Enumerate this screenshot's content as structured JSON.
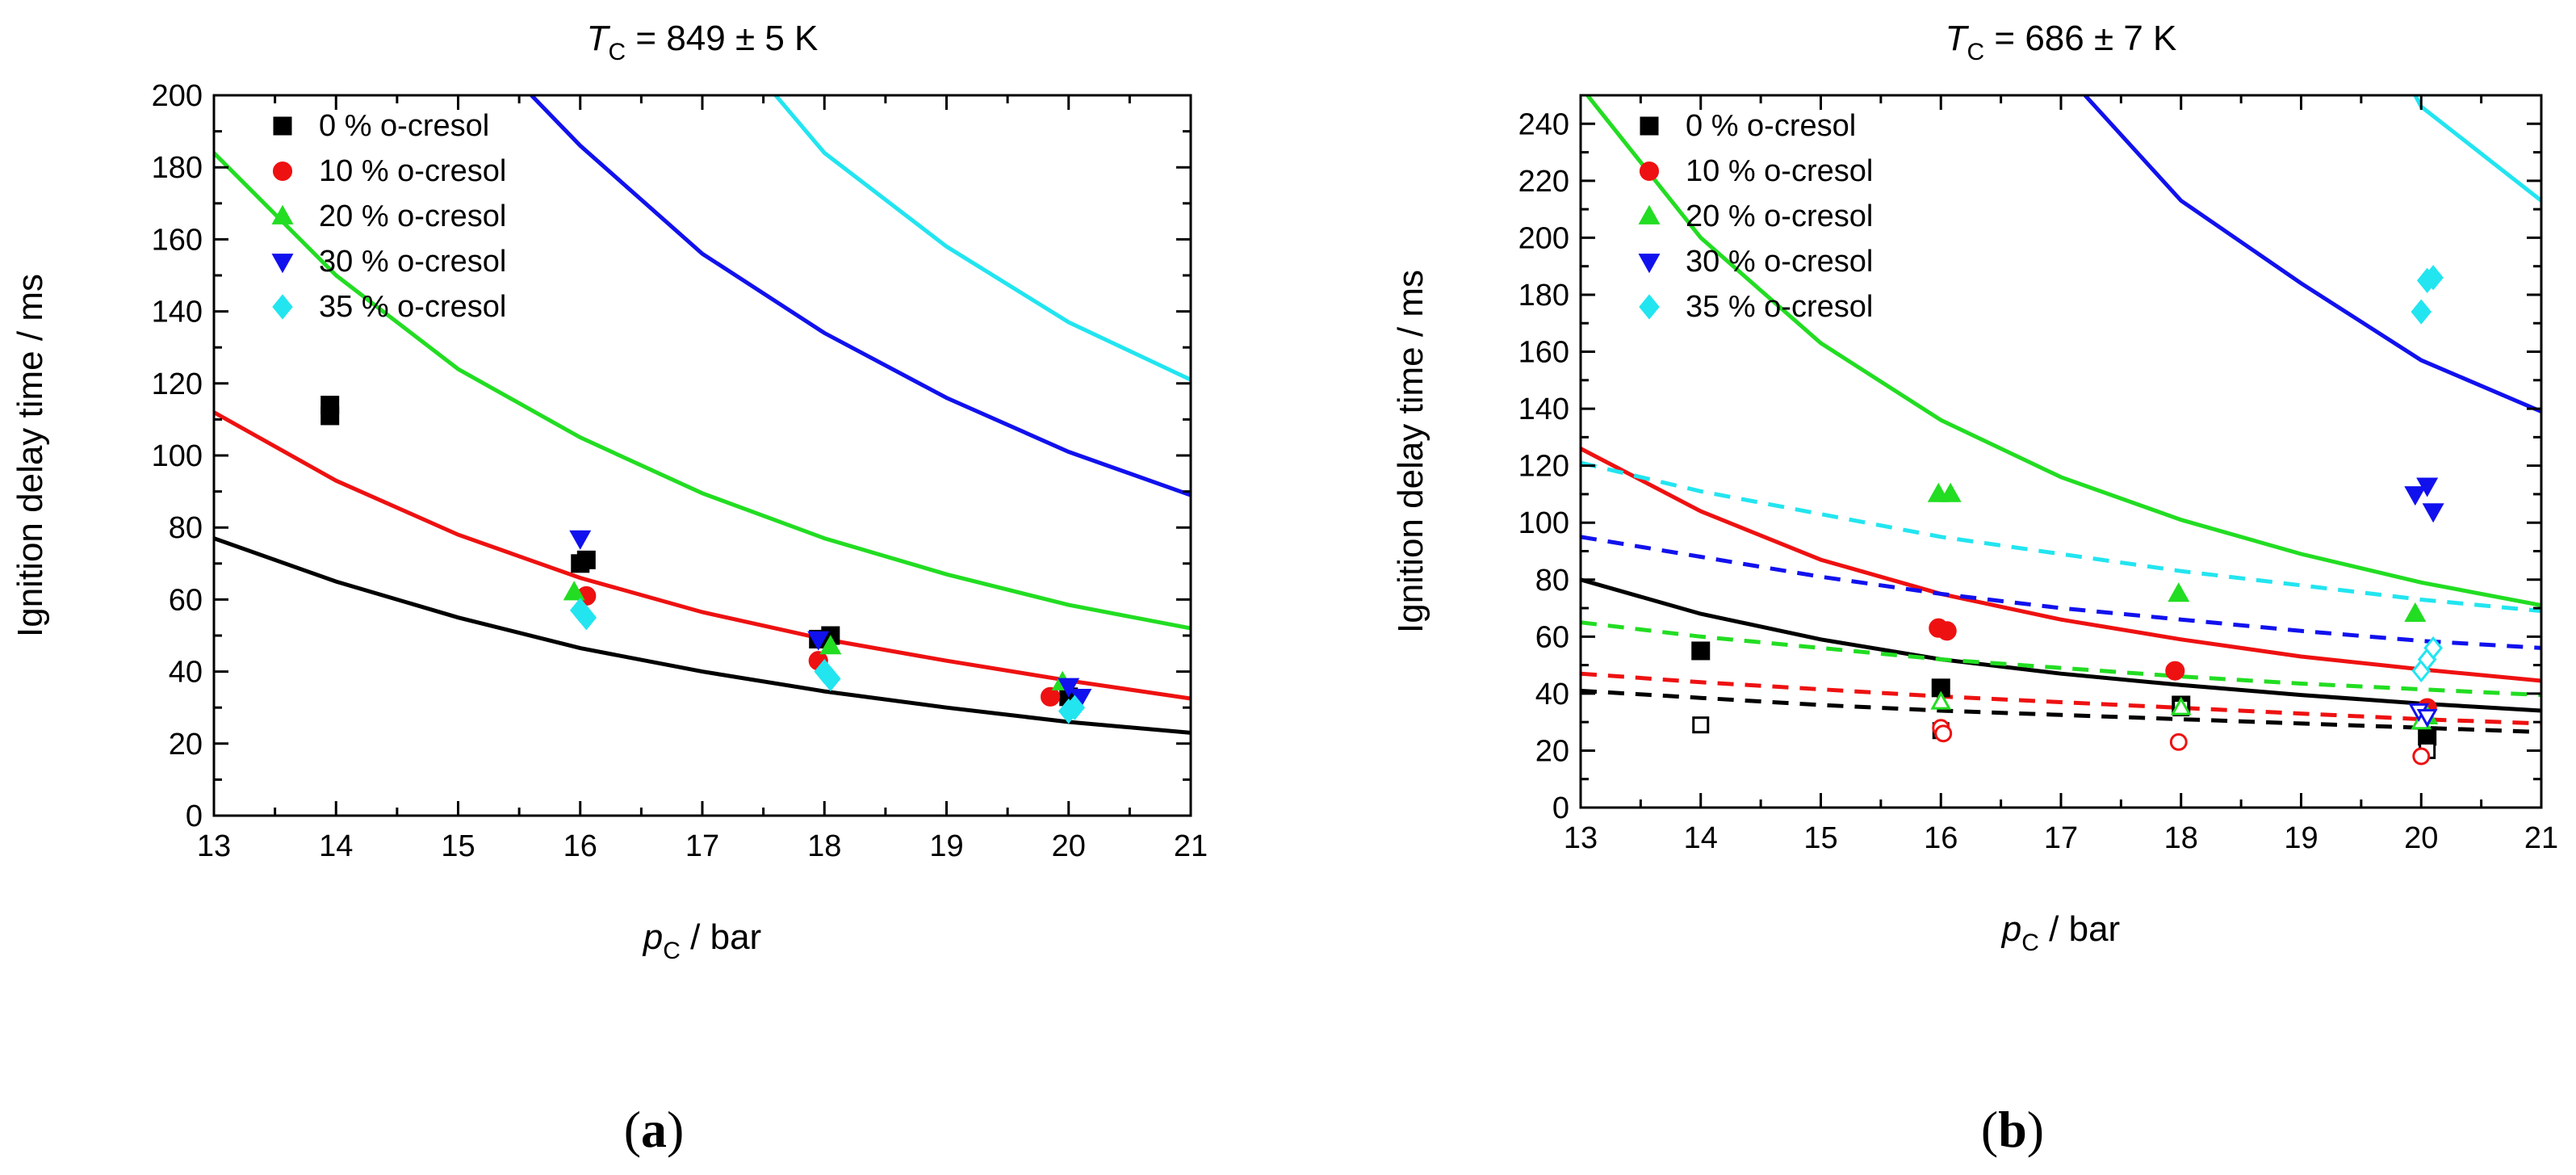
{
  "colors": {
    "black": "#000000",
    "red": "#ee1111",
    "green": "#22dd22",
    "blue": "#1111ee",
    "cyan": "#22e5f0"
  },
  "chart_data": [
    {
      "type": "scatter",
      "panel": "a",
      "panel_label_open": "(",
      "panel_label_letter": "a",
      "panel_label_close": ")",
      "title_var": "T",
      "title_sub": "C",
      "title_rest": " = 849 ± 5 K",
      "xlabel_var": "p",
      "xlabel_sub": "C",
      "xlabel_rest": " / bar",
      "ylabel": "Ignition delay time / ms",
      "xlim": [
        13,
        21
      ],
      "ylim": [
        0,
        200
      ],
      "xticks": [
        13,
        14,
        15,
        16,
        17,
        18,
        19,
        20,
        21
      ],
      "yticks": [
        0,
        20,
        40,
        60,
        80,
        100,
        120,
        140,
        160,
        180,
        200
      ],
      "legend_position": "top-left",
      "legend": [
        {
          "label": "0 % o-cresol",
          "marker": "square",
          "color": "#000000"
        },
        {
          "label": "10 % o-cresol",
          "marker": "circle",
          "color": "#ee1111"
        },
        {
          "label": "20 % o-cresol",
          "marker": "triangle-up",
          "color": "#22dd22"
        },
        {
          "label": "30 % o-cresol",
          "marker": "triangle-down",
          "color": "#1111ee"
        },
        {
          "label": "35 % o-cresol",
          "marker": "diamond",
          "color": "#22e5f0"
        }
      ],
      "points": [
        {
          "series": "0 % o-cresol",
          "marker": "square",
          "color": "#000000",
          "filled": true,
          "x": [
            13.95,
            13.95,
            16.0,
            16.05,
            17.95,
            18.05,
            20.0
          ],
          "y": [
            111,
            114,
            70,
            71,
            49,
            50,
            33
          ]
        },
        {
          "series": "10 % o-cresol",
          "marker": "circle",
          "color": "#ee1111",
          "filled": true,
          "x": [
            16.05,
            17.95,
            19.85
          ],
          "y": [
            61,
            43,
            33
          ]
        },
        {
          "series": "20 % o-cresol",
          "marker": "triangle-up",
          "color": "#22dd22",
          "filled": true,
          "x": [
            15.95,
            18.05,
            19.95
          ],
          "y": [
            62,
            47,
            37
          ]
        },
        {
          "series": "30 % o-cresol",
          "marker": "triangle-down",
          "color": "#1111ee",
          "filled": true,
          "x": [
            16.0,
            17.95,
            20.0,
            20.1
          ],
          "y": [
            77,
            49,
            36,
            33
          ]
        },
        {
          "series": "35 % o-cresol",
          "marker": "diamond",
          "color": "#22e5f0",
          "filled": true,
          "x": [
            16.0,
            16.05,
            18.0,
            18.05,
            20.0,
            20.05
          ],
          "y": [
            57,
            55,
            40,
            38,
            29,
            30
          ]
        }
      ],
      "lines": [
        {
          "series": "0 % o-cresol model",
          "color": "#000000",
          "dashed": false,
          "x": [
            13,
            14,
            15,
            16,
            17,
            18,
            19,
            20,
            21
          ],
          "y": [
            77,
            65,
            55,
            46.5,
            40,
            34.5,
            30,
            26,
            23
          ]
        },
        {
          "series": "10 % o-cresol model",
          "color": "#ee1111",
          "dashed": false,
          "x": [
            13,
            14,
            15,
            16,
            17,
            18,
            19,
            20,
            21
          ],
          "y": [
            112,
            93,
            78,
            66,
            56.5,
            49,
            43,
            37.5,
            32.5
          ]
        },
        {
          "series": "20 % o-cresol model",
          "color": "#22dd22",
          "dashed": false,
          "x": [
            13,
            14,
            15,
            16,
            17,
            18,
            19,
            20,
            21
          ],
          "y": [
            184,
            150,
            124,
            105,
            89.5,
            77,
            67,
            58.5,
            52
          ]
        },
        {
          "series": "30 % o-cresol model",
          "color": "#1111ee",
          "dashed": false,
          "x": [
            15.6,
            16,
            17,
            18,
            19,
            20,
            21
          ],
          "y": [
            200,
            186,
            156,
            134,
            116,
            101,
            89
          ]
        },
        {
          "series": "35 % o-cresol model",
          "color": "#22e5f0",
          "dashed": false,
          "x": [
            17.6,
            18,
            19,
            20,
            21
          ],
          "y": [
            200,
            184,
            158,
            137,
            121
          ]
        }
      ]
    },
    {
      "type": "scatter",
      "panel": "b",
      "panel_label_open": "(",
      "panel_label_letter": "b",
      "panel_label_close": ")",
      "title_var": "T",
      "title_sub": "C",
      "title_rest": " = 686 ± 7 K",
      "xlabel_var": "p",
      "xlabel_sub": "C",
      "xlabel_rest": " / bar",
      "ylabel": "Ignition delay time / ms",
      "xlim": [
        13,
        21
      ],
      "ylim": [
        0,
        250
      ],
      "xticks": [
        13,
        14,
        15,
        16,
        17,
        18,
        19,
        20,
        21
      ],
      "yticks": [
        0,
        20,
        40,
        60,
        80,
        100,
        120,
        140,
        160,
        180,
        200,
        220,
        240
      ],
      "legend_position": "top-left",
      "legend": [
        {
          "label": "0 % o-cresol",
          "marker": "square",
          "color": "#000000"
        },
        {
          "label": "10 % o-cresol",
          "marker": "circle",
          "color": "#ee1111"
        },
        {
          "label": "20 % o-cresol",
          "marker": "triangle-up",
          "color": "#22dd22"
        },
        {
          "label": "30 % o-cresol",
          "marker": "triangle-down",
          "color": "#1111ee"
        },
        {
          "label": "35 % o-cresol",
          "marker": "diamond",
          "color": "#22e5f0"
        }
      ],
      "points": [
        {
          "series": "0 % o-cresol",
          "marker": "square",
          "color": "#000000",
          "filled": true,
          "x": [
            14.0,
            16.0,
            18.0,
            20.05
          ],
          "y": [
            55,
            42,
            36,
            25
          ]
        },
        {
          "series": "0 % o-cresol",
          "marker": "square",
          "color": "#000000",
          "filled": false,
          "x": [
            14.0,
            16.0,
            18.0,
            20.05
          ],
          "y": [
            29,
            27,
            35,
            20
          ]
        },
        {
          "series": "10 % o-cresol",
          "marker": "circle",
          "color": "#ee1111",
          "filled": true,
          "x": [
            15.98,
            16.05,
            17.95,
            20.05
          ],
          "y": [
            63,
            62,
            48,
            35
          ]
        },
        {
          "series": "10 % o-cresol",
          "marker": "circle",
          "color": "#ee1111",
          "filled": false,
          "x": [
            16.0,
            16.02,
            17.98,
            20.0
          ],
          "y": [
            28,
            26,
            23,
            18
          ]
        },
        {
          "series": "20 % o-cresol",
          "marker": "triangle-up",
          "color": "#22dd22",
          "filled": true,
          "x": [
            15.98,
            16.08,
            17.98,
            19.95,
            20.05
          ],
          "y": [
            110,
            110,
            75,
            68,
            32
          ]
        },
        {
          "series": "20 % o-cresol",
          "marker": "triangle-up",
          "color": "#22dd22",
          "filled": false,
          "x": [
            16.0,
            18.0,
            20.0
          ],
          "y": [
            37,
            35,
            30
          ]
        },
        {
          "series": "30 % o-cresol",
          "marker": "triangle-down",
          "color": "#1111ee",
          "filled": true,
          "x": [
            19.95,
            20.05,
            20.1
          ],
          "y": [
            110,
            113,
            104
          ]
        },
        {
          "series": "30 % o-cresol",
          "marker": "triangle-down",
          "color": "#1111ee",
          "filled": false,
          "x": [
            19.98,
            20.05
          ],
          "y": [
            34,
            32
          ]
        },
        {
          "series": "35 % o-cresol",
          "marker": "diamond",
          "color": "#22e5f0",
          "filled": true,
          "x": [
            20.0,
            20.05,
            20.1
          ],
          "y": [
            174,
            185,
            186
          ]
        },
        {
          "series": "35 % o-cresol",
          "marker": "diamond",
          "color": "#22e5f0",
          "filled": false,
          "x": [
            20.0,
            20.05,
            20.1
          ],
          "y": [
            48,
            52,
            56
          ]
        }
      ],
      "lines": [
        {
          "series": "0 % o-cresol model",
          "color": "#000000",
          "dashed": false,
          "x": [
            13,
            14,
            15,
            16,
            17,
            18,
            19,
            20,
            21
          ],
          "y": [
            80,
            68,
            59,
            52,
            47,
            43,
            39.5,
            36.5,
            34
          ]
        },
        {
          "series": "10 % o-cresol model",
          "color": "#ee1111",
          "dashed": false,
          "x": [
            13,
            14,
            15,
            16,
            17,
            18,
            19,
            20,
            21
          ],
          "y": [
            126,
            104,
            87,
            75,
            66,
            59,
            53,
            48.5,
            44.5
          ]
        },
        {
          "series": "20 % o-cresol model",
          "color": "#22dd22",
          "dashed": false,
          "x": [
            13,
            14,
            15,
            16,
            17,
            18,
            19,
            20,
            21
          ],
          "y": [
            253,
            200,
            163,
            136,
            116,
            101,
            89,
            79,
            71
          ]
        },
        {
          "series": "30 % o-cresol model",
          "color": "#1111ee",
          "dashed": false,
          "x": [
            17.2,
            18,
            19,
            20,
            21
          ],
          "y": [
            250,
            213,
            184,
            157,
            139
          ]
        },
        {
          "series": "35 % o-cresol model",
          "color": "#22e5f0",
          "dashed": false,
          "x": [
            19.95,
            20,
            21
          ],
          "y": [
            250,
            246,
            213
          ]
        },
        {
          "series": "0 % o-cresol model (dashed)",
          "color": "#000000",
          "dashed": true,
          "x": [
            13,
            14,
            15,
            16,
            17,
            18,
            19,
            20,
            21
          ],
          "y": [
            41,
            38.5,
            36,
            34,
            32.5,
            31,
            29.5,
            28,
            26.5
          ]
        },
        {
          "series": "10 % o-cresol model (dashed)",
          "color": "#ee1111",
          "dashed": true,
          "x": [
            13,
            14,
            15,
            16,
            17,
            18,
            19,
            20,
            21
          ],
          "y": [
            47,
            44,
            41.5,
            39,
            37,
            35,
            33,
            31,
            29.5
          ]
        },
        {
          "series": "20 % o-cresol model (dashed)",
          "color": "#22dd22",
          "dashed": true,
          "x": [
            13,
            14,
            15,
            16,
            17,
            18,
            19,
            20,
            21
          ],
          "y": [
            65,
            60,
            56,
            52,
            49,
            46,
            43.5,
            41.5,
            39.5
          ]
        },
        {
          "series": "30 % o-cresol model (dashed)",
          "color": "#1111ee",
          "dashed": true,
          "x": [
            13,
            14,
            15,
            16,
            17,
            18,
            19,
            20,
            21
          ],
          "y": [
            95,
            88,
            81,
            75,
            70,
            66,
            62,
            58.5,
            56
          ]
        },
        {
          "series": "35 % o-cresol model (dashed)",
          "color": "#22e5f0",
          "dashed": true,
          "x": [
            13,
            14,
            15,
            16,
            17,
            18,
            19,
            20,
            21
          ],
          "y": [
            121,
            111,
            103,
            95,
            89,
            83,
            78,
            73,
            69
          ]
        }
      ]
    }
  ]
}
